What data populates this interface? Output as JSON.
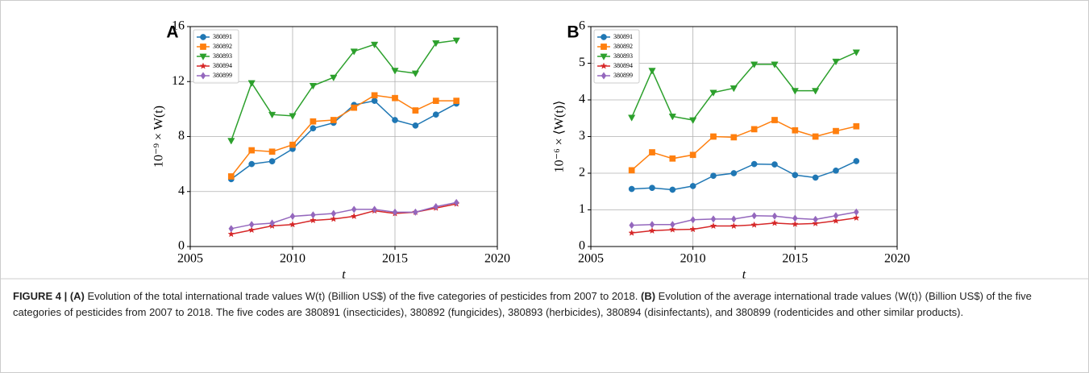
{
  "chart_data": [
    {
      "type": "line",
      "panel_label": "A",
      "y_label": "10⁻⁹ × W(t)",
      "x_label": "t",
      "x": [
        2007,
        2008,
        2009,
        2010,
        2011,
        2012,
        2013,
        2014,
        2015,
        2016,
        2017,
        2018
      ],
      "xlim": [
        2005,
        2020
      ],
      "xticks": [
        2005,
        2010,
        2015,
        2020
      ],
      "ylim": [
        0,
        16
      ],
      "yticks": [
        0,
        4,
        8,
        12,
        16
      ],
      "grid": true,
      "legend": "upper-left",
      "series": [
        {
          "name": "380891",
          "color": "#1f77b4",
          "marker": "circle",
          "values": [
            4.9,
            6.0,
            6.2,
            7.1,
            8.6,
            9.0,
            10.3,
            10.6,
            9.2,
            8.8,
            9.6,
            10.4
          ]
        },
        {
          "name": "380892",
          "color": "#ff7f0e",
          "marker": "square",
          "values": [
            5.1,
            7.0,
            6.9,
            7.4,
            9.1,
            9.2,
            10.1,
            11.0,
            10.8,
            9.9,
            10.6,
            10.6
          ]
        },
        {
          "name": "380893",
          "color": "#2ca02c",
          "marker": "triangle-down",
          "values": [
            7.7,
            11.9,
            9.6,
            9.5,
            11.7,
            12.3,
            14.2,
            14.7,
            12.8,
            12.6,
            14.8,
            15.0
          ]
        },
        {
          "name": "380894",
          "color": "#d62728",
          "marker": "star",
          "values": [
            0.9,
            1.2,
            1.5,
            1.6,
            1.9,
            2.0,
            2.2,
            2.6,
            2.4,
            2.5,
            2.8,
            3.1
          ]
        },
        {
          "name": "380899",
          "color": "#9467bd",
          "marker": "diamond",
          "values": [
            1.3,
            1.6,
            1.7,
            2.2,
            2.3,
            2.4,
            2.7,
            2.7,
            2.5,
            2.5,
            2.9,
            3.2
          ]
        }
      ]
    },
    {
      "type": "line",
      "panel_label": "B",
      "y_label": "10⁻⁶ × ⟨W(t)⟩",
      "x_label": "t",
      "x": [
        2007,
        2008,
        2009,
        2010,
        2011,
        2012,
        2013,
        2014,
        2015,
        2016,
        2017,
        2018
      ],
      "xlim": [
        2005,
        2020
      ],
      "xticks": [
        2005,
        2010,
        2015,
        2020
      ],
      "ylim": [
        0,
        6
      ],
      "yticks": [
        0,
        1,
        2,
        3,
        4,
        5,
        6
      ],
      "grid": true,
      "legend": "upper-left",
      "series": [
        {
          "name": "380891",
          "color": "#1f77b4",
          "marker": "circle",
          "values": [
            1.57,
            1.6,
            1.55,
            1.65,
            1.93,
            2.0,
            2.25,
            2.24,
            1.95,
            1.88,
            2.07,
            2.33
          ]
        },
        {
          "name": "380892",
          "color": "#ff7f0e",
          "marker": "square",
          "values": [
            2.08,
            2.57,
            2.4,
            2.5,
            3.0,
            2.98,
            3.2,
            3.45,
            3.17,
            3.0,
            3.15,
            3.28
          ]
        },
        {
          "name": "380893",
          "color": "#2ca02c",
          "marker": "triangle-down",
          "values": [
            3.52,
            4.8,
            3.55,
            3.45,
            4.2,
            4.32,
            4.97,
            4.97,
            4.25,
            4.25,
            5.05,
            5.3
          ]
        },
        {
          "name": "380894",
          "color": "#d62728",
          "marker": "star",
          "values": [
            0.37,
            0.43,
            0.46,
            0.47,
            0.56,
            0.56,
            0.59,
            0.64,
            0.61,
            0.63,
            0.7,
            0.78
          ]
        },
        {
          "name": "380899",
          "color": "#9467bd",
          "marker": "diamond",
          "values": [
            0.58,
            0.6,
            0.6,
            0.73,
            0.75,
            0.75,
            0.84,
            0.83,
            0.77,
            0.74,
            0.84,
            0.94
          ]
        }
      ]
    }
  ],
  "caption": {
    "figure": "FIGURE 4 |",
    "a_label": "(A)",
    "a_text": "Evolution of the total international trade values W(t) (Billion US$) of the five categories of pesticides from 2007 to 2018.",
    "b_label": "(B)",
    "b_text": "Evolution of the average international trade values ⟨W(t)⟩ (Billion US$) of the five categories of pesticides from 2007 to 2018. The five codes are 380891 (insecticides), 380892 (fungicides), 380893 (herbicides), 380894 (disinfectants), and 380899 (rodenticides and other similar products)."
  }
}
